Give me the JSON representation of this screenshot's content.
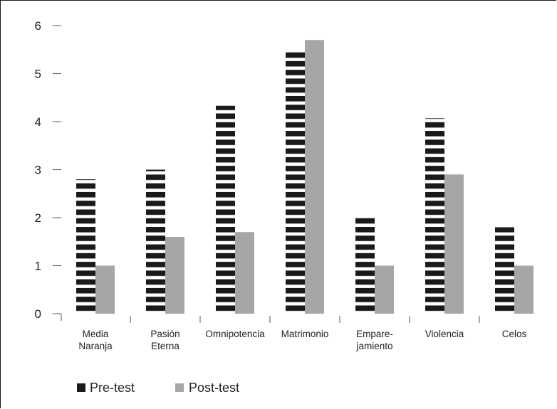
{
  "chart_data": {
    "type": "bar",
    "title": "",
    "xlabel": "",
    "ylabel": "",
    "ylim": [
      0,
      6
    ],
    "yticks": [
      "0",
      "1",
      "2",
      "3",
      "4",
      "5",
      "6"
    ],
    "categories": [
      [
        "Media",
        "Naranja"
      ],
      [
        "Pasión",
        "Eterna"
      ],
      [
        "Omnipotencia"
      ],
      [
        "Matrimonio"
      ],
      [
        "Empare-",
        "jamiento"
      ],
      [
        "Violencia"
      ],
      [
        "Celos"
      ]
    ],
    "series": [
      {
        "name": "Pre-test",
        "values": [
          2.8,
          3.0,
          4.33,
          5.5,
          2.0,
          4.07,
          1.8
        ],
        "color": "#1a1a1a",
        "pattern": "horizontal-stripes"
      },
      {
        "name": "Post-test",
        "values": [
          1.0,
          1.6,
          1.7,
          5.7,
          1.0,
          2.9,
          1.0
        ],
        "color": "#a6a6a6",
        "pattern": "solid"
      }
    ],
    "grid": false,
    "legend": "bottom-left"
  }
}
